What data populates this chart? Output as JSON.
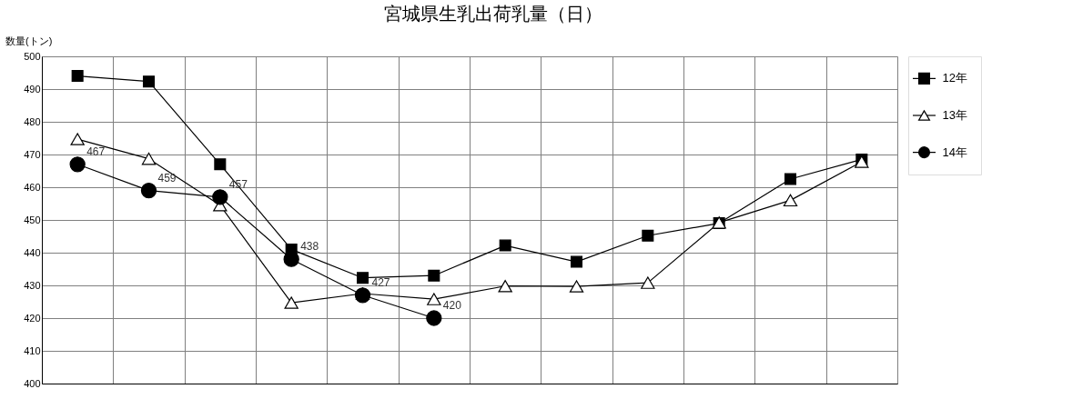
{
  "chart_data": {
    "type": "line",
    "title": "宮城県生乳出荷乳量（日）",
    "ylabel": "数量(トン)",
    "categories": [
      null,
      null,
      null,
      null,
      null,
      null,
      null,
      null,
      null,
      null,
      null,
      null
    ],
    "series": [
      {
        "name": "12年",
        "color": "#000000",
        "marker": "square",
        "values": [
          494,
          492.3,
          467,
          441,
          432.3,
          433,
          442.2,
          437.2,
          445.2,
          449,
          462.5,
          468.5
        ]
      },
      {
        "name": "13年",
        "color": "#000000",
        "marker": "triangle",
        "values": [
          474.7,
          468.7,
          454.5,
          424.7,
          427.5,
          425.8,
          429.8,
          429.7,
          430.8,
          449.2,
          456,
          467.8
        ]
      },
      {
        "name": "14年",
        "color": "#000000",
        "marker": "circle",
        "values": [
          467,
          459,
          457,
          438,
          427,
          420,
          null,
          null,
          null,
          null,
          null,
          null
        ],
        "value_labels": [
          "467",
          "459",
          "457",
          "438",
          "427",
          "420",
          null,
          null,
          null,
          null,
          null,
          null
        ]
      }
    ],
    "ylim": [
      400,
      500
    ],
    "yticks": [
      400,
      410,
      420,
      430,
      440,
      450,
      460,
      470,
      480,
      490,
      500
    ],
    "grid": true,
    "legend": "right",
    "tick_labels": "y",
    "line_style": "solid"
  }
}
